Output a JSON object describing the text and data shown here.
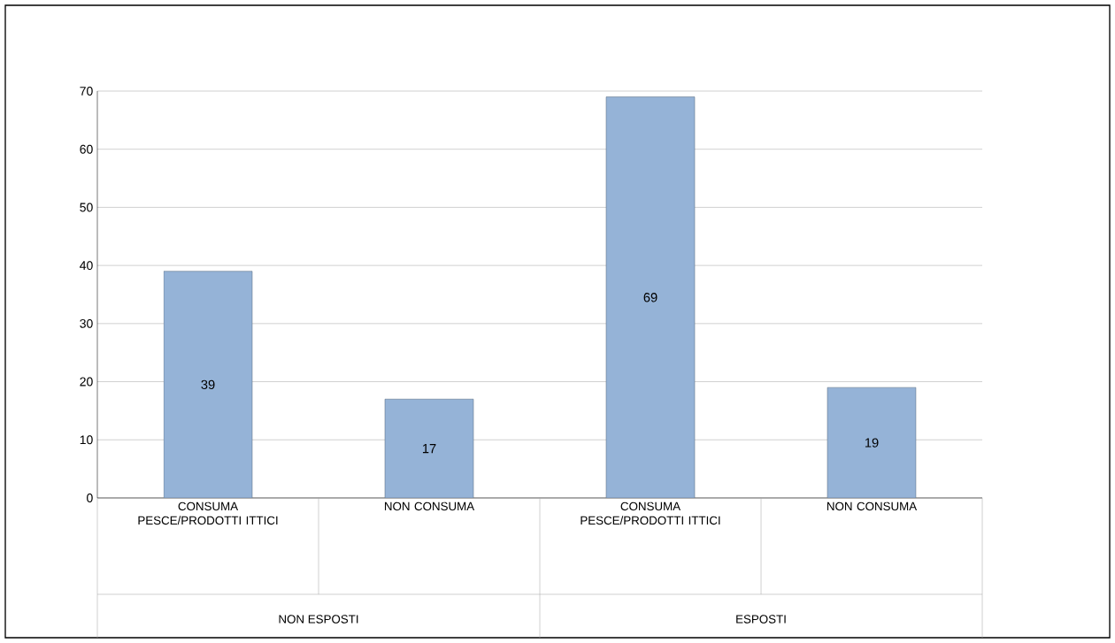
{
  "chart_data": {
    "type": "bar",
    "categories": [
      "CONSUMA PESCE/PRODOTTI ITTICI",
      "NON CONSUMA",
      "CONSUMA PESCE/PRODOTTI ITTICI",
      "NON CONSUMA"
    ],
    "values": [
      39,
      17,
      69,
      19
    ],
    "color": "#95b3d7",
    "data_labels": true,
    "ylim": [
      0,
      70
    ],
    "yticks": [
      0,
      10,
      20,
      30,
      40,
      50,
      60,
      70
    ],
    "grid": "y",
    "annotations": [
      "NON ESPOSTI",
      "ESPOSTI"
    ]
  }
}
